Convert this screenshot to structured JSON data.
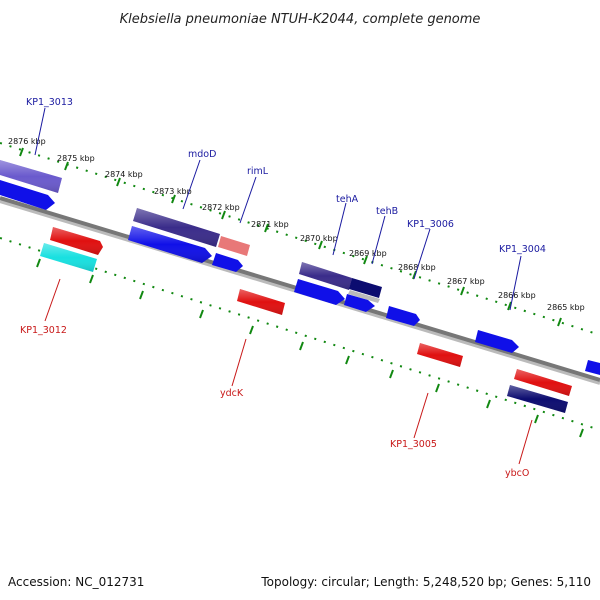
{
  "title": "Klebsiella pneumoniae NTUH-K2044, complete genome",
  "accession": "Accession: NC_012731",
  "topology": "Topology: circular; Length: 5,248,520 bp; Genes: 5,110",
  "kbp_labels": [
    "2876 kbp",
    "2875 kbp",
    "2874 kbp",
    "2873 kbp",
    "2872 kbp",
    "2871 kbp",
    "2870 kbp",
    "2869 kbp",
    "2868 kbp",
    "2867 kbp",
    "2866 kbp",
    "2865 kbp"
  ],
  "forward_gene_labels": [
    "KP1_3013",
    "mdoD",
    "rimL",
    "tehA",
    "tehB",
    "KP1_3006",
    "KP1_3004"
  ],
  "reverse_gene_labels": [
    "KP1_3012",
    "ydcK",
    "KP1_3005",
    "ybcO"
  ],
  "colors": {
    "forward_blue": "#1010e8",
    "forward_dark": "#3a2c8a",
    "reverse_red": "#e01010",
    "reverse_pink": "#e87878",
    "cyan": "#18e0e0",
    "navy": "#0c0c70",
    "backbone": "#888888",
    "tick_green": "#118811"
  }
}
